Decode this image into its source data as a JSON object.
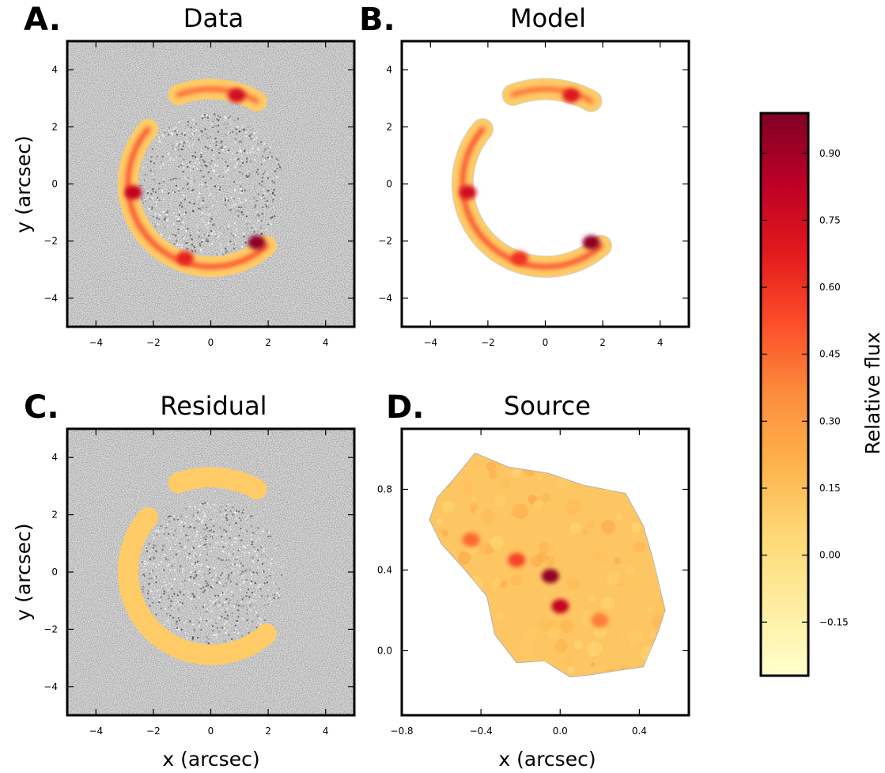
{
  "chart_data": [
    {
      "panel": "A.",
      "title": "Data",
      "type": "heatmap",
      "xlabel": "",
      "ylabel": "y (arcsec)",
      "xlim": [
        -5,
        5
      ],
      "ylim": [
        -5,
        5
      ],
      "xticks": [
        -4,
        -2,
        0,
        2,
        4
      ],
      "yticks": [
        -4,
        -2,
        0,
        2,
        4
      ],
      "xtick_labels": [
        "−4",
        "−2",
        "0",
        "2",
        "4"
      ],
      "ytick_labels": [
        "−4",
        "−2",
        "0",
        "2",
        "4"
      ],
      "background": "grayscale noise",
      "arcs": [
        {
          "name": "upper arc",
          "cx": 0,
          "cy": 0,
          "r": 3.3,
          "theta_start": 61,
          "theta_end": 110,
          "peak": 0.85
        },
        {
          "name": "lower arc",
          "cx": 0,
          "cy": 0,
          "r": 2.9,
          "theta_start": 139,
          "theta_end": 312,
          "peak": 0.95
        }
      ],
      "bright_spots": [
        {
          "x": 1.6,
          "y": -2.05,
          "value": 0.95
        },
        {
          "x": -2.7,
          "y": -0.3,
          "value": 0.8
        },
        {
          "x": 0.9,
          "y": 3.1,
          "value": 0.75
        },
        {
          "x": -0.9,
          "y": -2.6,
          "value": 0.65
        }
      ]
    },
    {
      "panel": "B.",
      "title": "Model",
      "type": "heatmap",
      "xlabel": "",
      "ylabel": "",
      "xlim": [
        -5,
        5
      ],
      "ylim": [
        -5,
        5
      ],
      "xticks": [
        -4,
        -2,
        0,
        2,
        4
      ],
      "yticks": [
        -4,
        -2,
        0,
        2,
        4
      ],
      "xtick_labels": [
        "−4",
        "−2",
        "0",
        "2",
        "4"
      ],
      "ytick_labels": [
        "−4",
        "−2",
        "0",
        "2",
        "4"
      ],
      "background": "white",
      "arcs": [
        {
          "name": "upper arc",
          "cx": 0,
          "cy": 0,
          "r": 3.3,
          "theta_start": 61,
          "theta_end": 110,
          "peak": 0.8
        },
        {
          "name": "lower arc",
          "cx": 0,
          "cy": 0,
          "r": 2.9,
          "theta_start": 139,
          "theta_end": 312,
          "peak": 0.95
        }
      ],
      "bright_spots": [
        {
          "x": 1.6,
          "y": -2.05,
          "value": 0.95
        },
        {
          "x": -2.7,
          "y": -0.3,
          "value": 0.75
        },
        {
          "x": 0.9,
          "y": 3.1,
          "value": 0.7
        },
        {
          "x": -0.9,
          "y": -2.6,
          "value": 0.6
        }
      ]
    },
    {
      "panel": "C.",
      "title": "Residual",
      "type": "heatmap",
      "xlabel": "x (arcsec)",
      "ylabel": "y (arcsec)",
      "xlim": [
        -5,
        5
      ],
      "ylim": [
        -5,
        5
      ],
      "xticks": [
        -4,
        -2,
        0,
        2,
        4
      ],
      "yticks": [
        -4,
        -2,
        0,
        2,
        4
      ],
      "xtick_labels": [
        "−4",
        "−2",
        "0",
        "2",
        "4"
      ],
      "ytick_labels": [
        "−4",
        "−2",
        "0",
        "2",
        "4"
      ],
      "background": "grayscale noise",
      "arcs": [
        {
          "name": "upper arc",
          "cx": 0,
          "cy": 0,
          "r": 3.3,
          "theta_start": 61,
          "theta_end": 110,
          "peak": 0.12
        },
        {
          "name": "lower arc",
          "cx": 0,
          "cy": 0,
          "r": 2.9,
          "theta_start": 139,
          "theta_end": 312,
          "peak": 0.12
        }
      ],
      "bright_spots": []
    },
    {
      "panel": "D.",
      "title": "Source",
      "type": "heatmap",
      "xlabel": "x (arcsec)",
      "ylabel": "",
      "xlim": [
        -0.8,
        0.65
      ],
      "ylim": [
        -0.32,
        1.1
      ],
      "xticks": [
        -0.8,
        -0.4,
        0.0,
        0.4
      ],
      "yticks": [
        0.0,
        0.4,
        0.8
      ],
      "xtick_labels": [
        "−0.8",
        "−0.4",
        "0.0",
        "0.4"
      ],
      "ytick_labels": [
        "0.0",
        "0.4",
        "0.8"
      ],
      "background": "white",
      "source_outline": [
        [
          -0.43,
          0.98
        ],
        [
          -0.26,
          0.91
        ],
        [
          -0.06,
          0.88
        ],
        [
          0.12,
          0.82
        ],
        [
          0.33,
          0.78
        ],
        [
          0.42,
          0.62
        ],
        [
          0.47,
          0.45
        ],
        [
          0.53,
          0.2
        ],
        [
          0.49,
          0.08
        ],
        [
          0.42,
          -0.08
        ],
        [
          0.28,
          -0.1
        ],
        [
          0.15,
          -0.12
        ],
        [
          0.05,
          -0.13
        ],
        [
          -0.08,
          -0.05
        ],
        [
          -0.22,
          -0.06
        ],
        [
          -0.33,
          0.08
        ],
        [
          -0.37,
          0.27
        ],
        [
          -0.48,
          0.4
        ],
        [
          -0.6,
          0.53
        ],
        [
          -0.66,
          0.65
        ],
        [
          -0.62,
          0.76
        ],
        [
          -0.53,
          0.86
        ]
      ],
      "bright_spots": [
        {
          "x": -0.05,
          "y": 0.37,
          "value": 0.95
        },
        {
          "x": 0.0,
          "y": 0.22,
          "value": 0.8
        },
        {
          "x": -0.22,
          "y": 0.45,
          "value": 0.55
        },
        {
          "x": -0.45,
          "y": 0.55,
          "value": 0.45
        },
        {
          "x": 0.2,
          "y": 0.15,
          "value": 0.4
        }
      ]
    },
    {
      "type": "colorbar",
      "label": "Relative flux",
      "vmin": -0.27,
      "vmax": 0.99,
      "ticks": [
        -0.15,
        0.0,
        0.15,
        0.3,
        0.45,
        0.6,
        0.75,
        0.9
      ],
      "tick_labels": [
        "−0.15",
        "0.00",
        "0.15",
        "0.30",
        "0.45",
        "0.60",
        "0.75",
        "0.90"
      ],
      "colormap": [
        "#ffffcc",
        "#ffeda0",
        "#fed976",
        "#feb24c",
        "#fd8d3c",
        "#fc4e2a",
        "#e31a1c",
        "#bd0026",
        "#800026"
      ]
    }
  ]
}
